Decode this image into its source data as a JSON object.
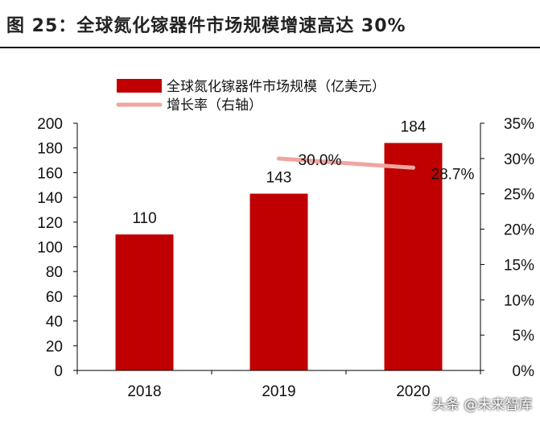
{
  "figure": {
    "title": "图 25：全球氮化镓器件市场规模增速高达 30%",
    "watermark": "头条 @未来智库"
  },
  "colors": {
    "bar": "#c00000",
    "line": "#f0a5a0",
    "axis": "#000000"
  },
  "chart_data": {
    "type": "bar",
    "categories": [
      "2018",
      "2019",
      "2020"
    ],
    "series": [
      {
        "name": "全球氮化镓器件市场规模（亿美元）",
        "type": "bar",
        "axis": "left",
        "values": [
          110,
          143,
          184
        ],
        "labels": [
          "110",
          "143",
          "184"
        ]
      },
      {
        "name": "增长率（右轴）",
        "type": "line",
        "axis": "right",
        "values": [
          null,
          30.0,
          28.7
        ],
        "labels": [
          "",
          "30.0%",
          "28.7%"
        ]
      }
    ],
    "ylim": [
      0,
      200
    ],
    "y_ticks": [
      "0",
      "20",
      "40",
      "60",
      "80",
      "100",
      "120",
      "140",
      "160",
      "180",
      "200"
    ],
    "y2lim": [
      0,
      35
    ],
    "y2_ticks": [
      "0%",
      "5%",
      "10%",
      "15%",
      "20%",
      "25%",
      "30%",
      "35%"
    ],
    "legend": "top",
    "grid": false
  }
}
